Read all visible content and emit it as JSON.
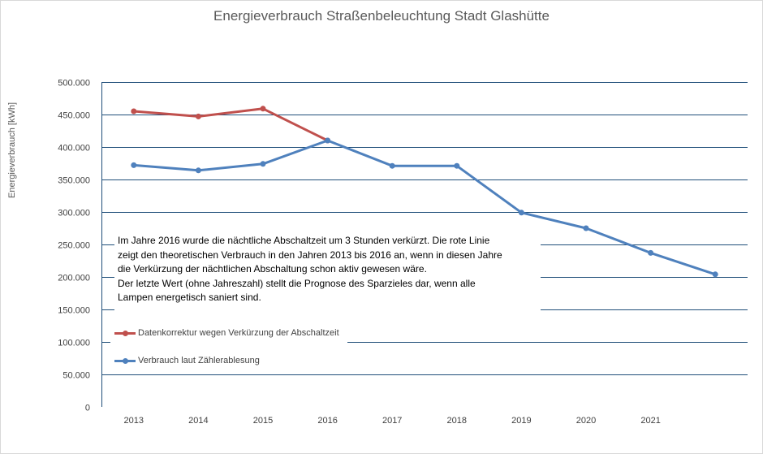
{
  "chart_data": {
    "type": "line",
    "title": "Energieverbrauch Straßenbeleuchtung Stadt Glashütte",
    "xlabel": "",
    "ylabel": "Energieverbrauch [kWh]",
    "categories": [
      "2013",
      "2014",
      "2015",
      "2016",
      "2017",
      "2018",
      "2019",
      "2020",
      "2021",
      ""
    ],
    "ylim": [
      0,
      500000
    ],
    "y_ticks": [
      "0",
      "50.000",
      "100.000",
      "150.000",
      "200.000",
      "250.000",
      "300.000",
      "350.000",
      "400.000",
      "450.000",
      "500.000"
    ],
    "grid": "horizontal",
    "series": [
      {
        "name": "Datenkorrektur wegen Verkürzung der Abschaltzeit",
        "color": "#c0504d",
        "values": [
          455000,
          447000,
          459000,
          410000,
          null,
          null,
          null,
          null,
          null,
          null
        ]
      },
      {
        "name": "Verbrauch laut Zählerablesung",
        "color": "#4f81bd",
        "values": [
          372000,
          364000,
          374000,
          410000,
          371000,
          371000,
          299000,
          275000,
          237000,
          204000
        ]
      }
    ],
    "annotation": [
      "Im Jahre 2016 wurde die nächtliche Abschaltzeit um 3 Stunden verkürzt.  Die rote Linie",
      "zeigt den theoretischen Verbrauch in den Jahren 2013 bis 2016 an, wenn in diesen Jahre",
      "die Verkürzung der nächtlichen Abschaltung schon aktiv gewesen wäre.",
      "Der letzte Wert (ohne Jahreszahl) stellt die Prognose des Sparzieles dar, wenn alle",
      "Lampen energetisch saniert sind."
    ],
    "legend_position": "left-center"
  }
}
